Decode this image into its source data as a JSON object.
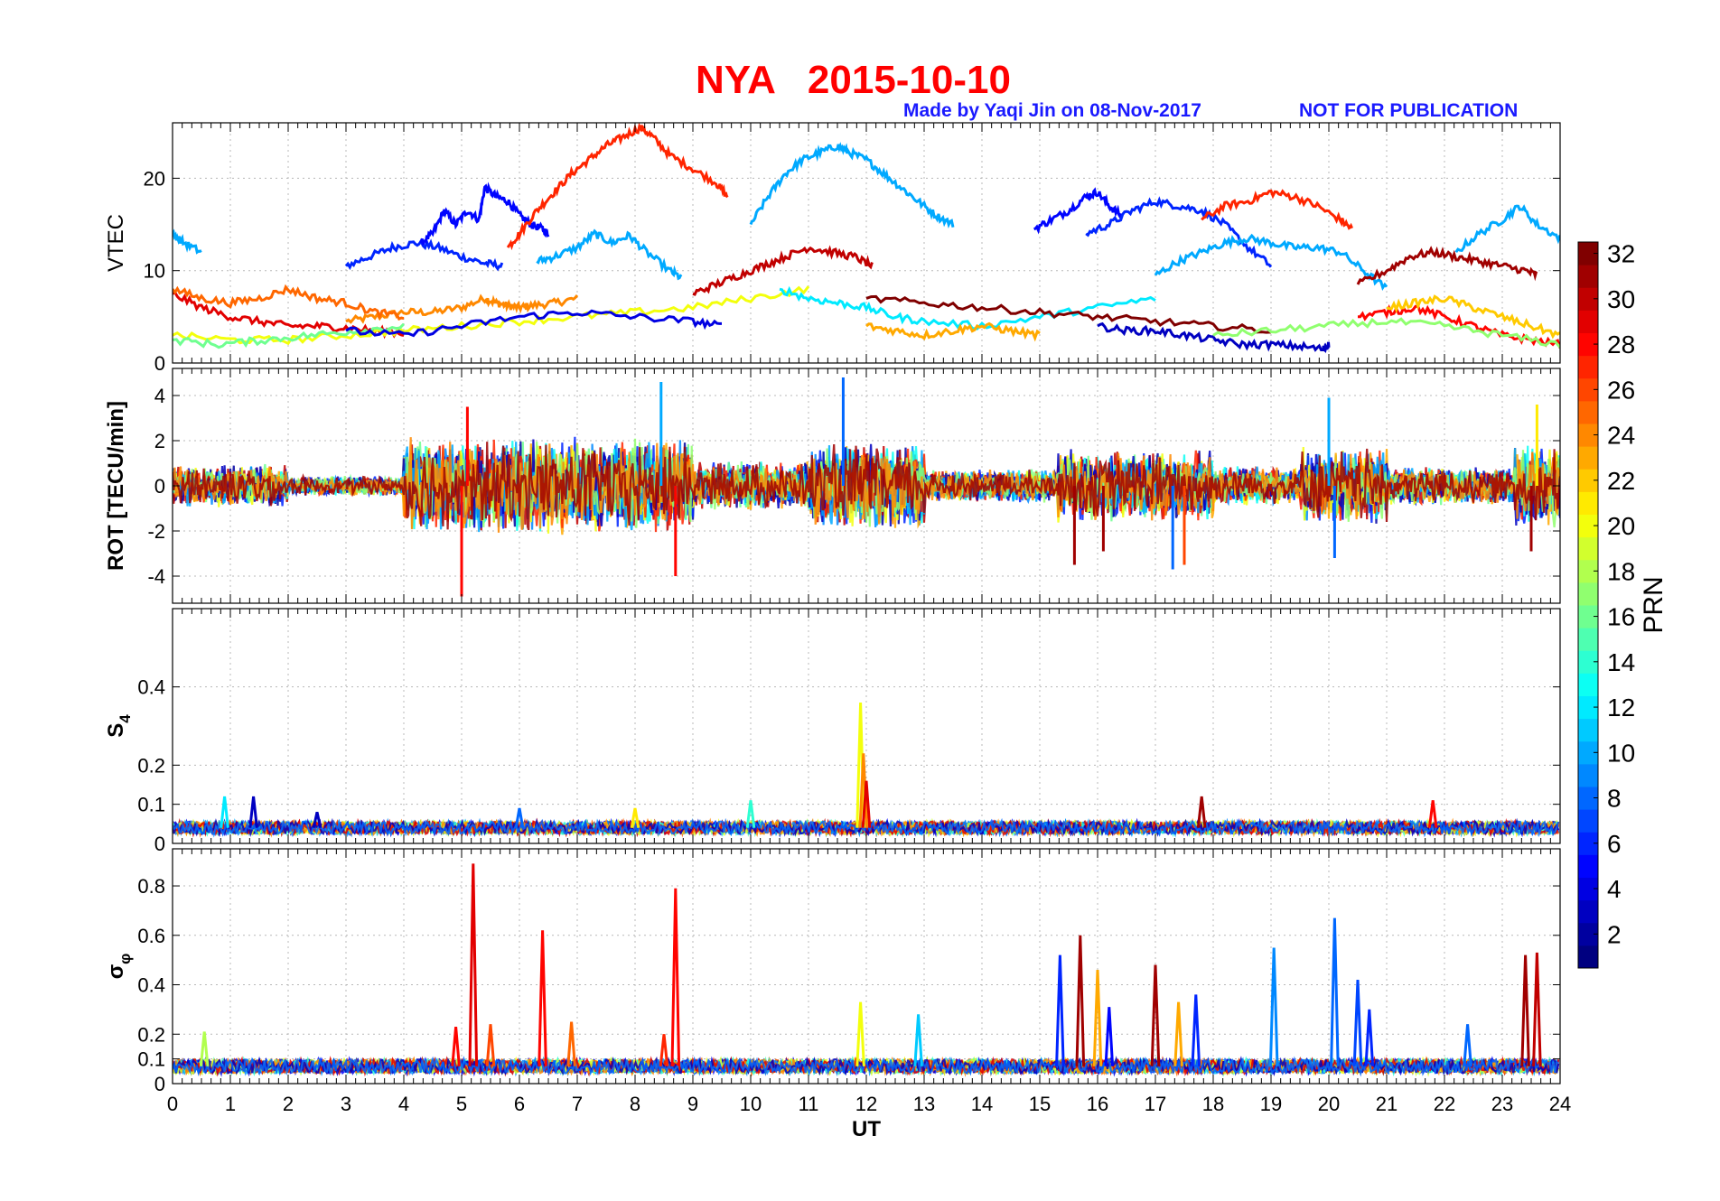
{
  "header": {
    "title": "NYA   2015-10-10",
    "credit": "Made by Yaqi Jin on 08-Nov-2017",
    "notice": "NOT FOR PUBLICATION"
  },
  "chart_data": [
    {
      "id": "vtec",
      "type": "line",
      "ylabel": "VTEC",
      "ylim": [
        0,
        26
      ],
      "yticks": [
        0,
        10,
        20
      ],
      "grid": true,
      "series": [
        {
          "prn": 24,
          "x": [
            3.0,
            3.5,
            4.0,
            4.5,
            5.0,
            5.4,
            5.6,
            5.8,
            6.0,
            6.2,
            6.6,
            7.0
          ],
          "y": [
            4.5,
            5,
            5.5,
            5.5,
            6,
            7,
            6.5,
            6.2,
            6,
            6.2,
            6.5,
            7
          ]
        },
        {
          "prn": 6,
          "x": [
            3.0,
            3.4,
            3.8,
            4.2,
            4.6,
            5.0,
            5.4,
            5.7
          ],
          "y": [
            10.5,
            11.5,
            12.5,
            13,
            12.5,
            11.5,
            10.8,
            10.5
          ]
        },
        {
          "prn": 5,
          "x": [
            4.3,
            4.5,
            4.7,
            4.9,
            5.1,
            5.3,
            5.4,
            5.6,
            5.8,
            6.0,
            6.2,
            6.4,
            6.5
          ],
          "y": [
            13,
            14,
            16.5,
            15,
            16.5,
            15.5,
            19,
            18,
            17.5,
            16,
            15,
            14.5,
            14
          ]
        },
        {
          "prn": 27,
          "x": [
            5.8,
            6.0,
            6.3,
            6.6,
            6.9,
            7.2,
            7.5,
            7.8,
            8.1,
            8.3,
            8.6,
            9.0,
            9.4,
            9.6
          ],
          "y": [
            12.5,
            14,
            16.5,
            18.5,
            20.5,
            22,
            23.5,
            24.5,
            25.5,
            24.5,
            22.5,
            21,
            19.5,
            18
          ]
        },
        {
          "prn": 10,
          "x": [
            6.3,
            6.6,
            7.0,
            7.3,
            7.6,
            7.9,
            8.2,
            8.6,
            8.8
          ],
          "y": [
            11,
            11.5,
            12.5,
            14,
            13,
            13.8,
            12,
            10,
            9.2
          ]
        },
        {
          "prn": 10,
          "x": [
            10.0,
            10.3,
            10.6,
            10.9,
            11.2,
            11.5,
            11.7,
            12.0,
            12.3,
            12.6,
            12.9,
            13.2,
            13.5
          ],
          "y": [
            15,
            18,
            20.5,
            22,
            22.8,
            23.5,
            22.8,
            22,
            20.5,
            19,
            17.5,
            16,
            15
          ]
        },
        {
          "prn": 5,
          "x": [
            14.9,
            15.2,
            15.5,
            15.8,
            16.0,
            16.2,
            16.4
          ],
          "y": [
            14.5,
            15.5,
            16.5,
            18,
            18.5,
            17,
            16
          ]
        },
        {
          "prn": 6,
          "x": [
            15.8,
            16.2,
            16.6,
            17.0,
            17.4,
            17.8,
            18.2,
            18.6,
            19.0
          ],
          "y": [
            14,
            15,
            16.5,
            17.5,
            17,
            16.5,
            15,
            12.5,
            10.5
          ]
        },
        {
          "prn": 27,
          "x": [
            17.8,
            18.2,
            18.6,
            19.0,
            19.4,
            19.8,
            20.2,
            20.4
          ],
          "y": [
            15.5,
            17,
            17.5,
            18.5,
            18,
            17,
            15.5,
            14.5
          ]
        },
        {
          "prn": 10,
          "x": [
            17.0,
            17.4,
            17.8,
            18.2,
            18.6,
            19.0,
            19.4,
            19.8,
            20.2,
            20.6,
            21.0
          ],
          "y": [
            9.5,
            11,
            12,
            13,
            13.5,
            13,
            12.5,
            12.5,
            12,
            10,
            8
          ]
        },
        {
          "prn": 10,
          "x": [
            22.2,
            22.6,
            23.0,
            23.3,
            23.6,
            24.0
          ],
          "y": [
            12,
            14,
            15.5,
            17,
            15,
            13.5
          ]
        },
        {
          "prn": 10,
          "x": [
            0.0,
            0.2,
            0.5
          ],
          "y": [
            14,
            13,
            12
          ]
        },
        {
          "prn": 30,
          "x": [
            9.0,
            9.4,
            9.8,
            10.2,
            10.6,
            11.0,
            11.4,
            11.8,
            12.1
          ],
          "y": [
            7.5,
            8.5,
            9.5,
            10.5,
            11.5,
            12.5,
            12,
            11.5,
            10.5
          ]
        },
        {
          "prn": 31,
          "x": [
            20.5,
            21.0,
            21.4,
            21.8,
            22.2,
            22.6,
            23.0,
            23.4,
            23.6
          ],
          "y": [
            8.5,
            10,
            11.5,
            12,
            11.5,
            11,
            10.5,
            10,
            9.5
          ]
        },
        {
          "prn": 29,
          "x": [
            0.0,
            0.5,
            1.0,
            1.5,
            2.0,
            2.5,
            3.0,
            3.5,
            4.0
          ],
          "y": [
            7.5,
            6,
            5,
            4.5,
            4,
            4,
            3.8,
            3.5,
            3.2
          ]
        },
        {
          "prn": 25,
          "x": [
            0.0,
            0.5,
            1.0,
            1.5,
            2.0,
            2.5,
            3.0,
            3.5,
            4.0
          ],
          "y": [
            8,
            7,
            6.5,
            7,
            8,
            7,
            6.5,
            5.5,
            5
          ]
        },
        {
          "prn": 20,
          "x": [
            0.0,
            1.0,
            2.0,
            3.0,
            4.0,
            5.0,
            6.0,
            7.0,
            8.0,
            9.0,
            10.0,
            11.0
          ],
          "y": [
            3,
            2.5,
            2.5,
            3,
            3.5,
            4,
            4.5,
            5,
            5.5,
            6,
            7,
            8
          ]
        },
        {
          "prn": 16,
          "x": [
            0.0,
            0.8,
            1.6,
            2.4,
            3.2,
            4.0
          ],
          "y": [
            2.5,
            2,
            2.5,
            3,
            3.5,
            4
          ]
        },
        {
          "prn": 4,
          "x": [
            3.0,
            4.0,
            5.0,
            6.0,
            7.0,
            8.0,
            9.0,
            9.5
          ],
          "y": [
            3.5,
            3,
            4,
            5,
            5.5,
            5,
            4.5,
            4
          ]
        },
        {
          "prn": 12,
          "x": [
            10.5,
            11.0,
            11.5,
            12.0,
            12.5,
            13.0,
            14.0,
            15.0,
            16.0,
            17.0
          ],
          "y": [
            8,
            7,
            6.5,
            6,
            5,
            4.5,
            4,
            5,
            6,
            7
          ]
        },
        {
          "prn": 23,
          "x": [
            12.0,
            12.5,
            13.0,
            13.5,
            14.0,
            14.5,
            15.0
          ],
          "y": [
            4,
            3.5,
            3,
            3.5,
            4,
            3.5,
            3
          ]
        },
        {
          "prn": 32,
          "x": [
            12.0,
            13.0,
            14.0,
            15.0,
            16.0,
            17.0,
            18.0,
            19.0
          ],
          "y": [
            7,
            6.5,
            6,
            5.5,
            5,
            4.5,
            4,
            3.5
          ]
        },
        {
          "prn": 3,
          "x": [
            16.0,
            16.5,
            17.0,
            17.5,
            18.0,
            18.5,
            19.0,
            19.5,
            19.9,
            20.0
          ],
          "y": [
            4,
            3.5,
            3.5,
            3,
            2.5,
            2,
            2,
            1.8,
            1.5,
            2
          ]
        },
        {
          "prn": 28,
          "x": [
            20.5,
            21.0,
            21.5,
            22.0,
            22.5,
            23.0,
            23.5,
            24.0
          ],
          "y": [
            5,
            5.5,
            6,
            5,
            4,
            3,
            2.5,
            2
          ]
        },
        {
          "prn": 22,
          "x": [
            21.0,
            21.5,
            22.0,
            22.5,
            23.0,
            23.5,
            24.0
          ],
          "y": [
            6,
            6.5,
            7,
            6,
            5,
            4,
            3
          ]
        },
        {
          "prn": 17,
          "x": [
            18.0,
            19.0,
            20.0,
            21.0,
            22.0,
            23.0,
            24.0
          ],
          "y": [
            3,
            3.5,
            4,
            4.5,
            4,
            3,
            2
          ]
        }
      ]
    },
    {
      "id": "rot",
      "type": "line",
      "ylabel": "ROT [TECU/min]",
      "ylim": [
        -5.2,
        5.2
      ],
      "yticks": [
        -4,
        -2,
        0,
        2,
        4
      ],
      "grid": true,
      "spikes": [
        {
          "x": 5.0,
          "y": -4.9,
          "prn": 28
        },
        {
          "x": 5.1,
          "y": 3.5,
          "prn": 28
        },
        {
          "x": 8.45,
          "y": 4.6,
          "prn": 10
        },
        {
          "x": 8.7,
          "y": -4.0,
          "prn": 28
        },
        {
          "x": 11.6,
          "y": 4.8,
          "prn": 8
        },
        {
          "x": 15.6,
          "y": -3.5,
          "prn": 31
        },
        {
          "x": 16.1,
          "y": -2.9,
          "prn": 31
        },
        {
          "x": 17.3,
          "y": -3.7,
          "prn": 8
        },
        {
          "x": 17.5,
          "y": -3.5,
          "prn": 26
        },
        {
          "x": 20.0,
          "y": 3.9,
          "prn": 10
        },
        {
          "x": 20.1,
          "y": -3.2,
          "prn": 8
        },
        {
          "x": 23.6,
          "y": 3.6,
          "prn": 21
        },
        {
          "x": 23.5,
          "y": -2.9,
          "prn": 31
        }
      ],
      "noise_windows": [
        {
          "from": 0.0,
          "to": 2.0,
          "amp": 0.9
        },
        {
          "from": 2.0,
          "to": 4.0,
          "amp": 0.4
        },
        {
          "from": 4.0,
          "to": 9.0,
          "amp": 2.0
        },
        {
          "from": 9.0,
          "to": 11.0,
          "amp": 1.0
        },
        {
          "from": 11.0,
          "to": 13.0,
          "amp": 1.8
        },
        {
          "from": 13.0,
          "to": 15.3,
          "amp": 0.7
        },
        {
          "from": 15.3,
          "to": 18.0,
          "amp": 1.5
        },
        {
          "from": 18.0,
          "to": 19.5,
          "amp": 0.8
        },
        {
          "from": 19.5,
          "to": 21.0,
          "amp": 1.6
        },
        {
          "from": 21.0,
          "to": 23.2,
          "amp": 0.8
        },
        {
          "from": 23.2,
          "to": 24.0,
          "amp": 1.7
        }
      ]
    },
    {
      "id": "s4",
      "type": "line",
      "ylabel": "S",
      "ylabel_sub": "4",
      "ylim": [
        0,
        0.6
      ],
      "yticks": [
        0,
        0.1,
        0.2,
        0.4
      ],
      "yticklabels": [
        "0",
        "0.1",
        "0.2",
        "0.4"
      ],
      "grid": true,
      "baseline": 0.04,
      "spikes": [
        {
          "x": 0.9,
          "y": 0.12,
          "prn": 12
        },
        {
          "x": 1.4,
          "y": 0.12,
          "prn": 3
        },
        {
          "x": 2.5,
          "y": 0.08,
          "prn": 3
        },
        {
          "x": 6.0,
          "y": 0.09,
          "prn": 8
        },
        {
          "x": 8.0,
          "y": 0.09,
          "prn": 21
        },
        {
          "x": 10.0,
          "y": 0.11,
          "prn": 14
        },
        {
          "x": 11.9,
          "y": 0.36,
          "prn": 20
        },
        {
          "x": 11.95,
          "y": 0.23,
          "prn": 24
        },
        {
          "x": 12.0,
          "y": 0.16,
          "prn": 29
        },
        {
          "x": 17.8,
          "y": 0.12,
          "prn": 31
        },
        {
          "x": 21.8,
          "y": 0.11,
          "prn": 28
        }
      ]
    },
    {
      "id": "sigma_phi",
      "type": "line",
      "ylabel": "σ",
      "ylabel_sub": "φ",
      "ylim": [
        0,
        0.95
      ],
      "yticks": [
        0,
        0.1,
        0.2,
        0.4,
        0.6,
        0.8
      ],
      "yticklabels": [
        "0",
        "0.1",
        "0.2",
        "0.4",
        "0.6",
        "0.8"
      ],
      "grid": true,
      "baseline": 0.07,
      "xlabel": "UT",
      "xlim": [
        0,
        24
      ],
      "xticks": [
        0,
        1,
        2,
        3,
        4,
        5,
        6,
        7,
        8,
        9,
        10,
        11,
        12,
        13,
        14,
        15,
        16,
        17,
        18,
        19,
        20,
        21,
        22,
        23,
        24
      ],
      "spikes": [
        {
          "x": 0.55,
          "y": 0.21,
          "prn": 18
        },
        {
          "x": 5.2,
          "y": 0.89,
          "prn": 29
        },
        {
          "x": 5.5,
          "y": 0.24,
          "prn": 26
        },
        {
          "x": 4.9,
          "y": 0.23,
          "prn": 28
        },
        {
          "x": 6.4,
          "y": 0.62,
          "prn": 28
        },
        {
          "x": 6.9,
          "y": 0.25,
          "prn": 25
        },
        {
          "x": 8.7,
          "y": 0.79,
          "prn": 28
        },
        {
          "x": 8.5,
          "y": 0.2,
          "prn": 27
        },
        {
          "x": 11.9,
          "y": 0.33,
          "prn": 20
        },
        {
          "x": 12.9,
          "y": 0.28,
          "prn": 11
        },
        {
          "x": 15.35,
          "y": 0.52,
          "prn": 6
        },
        {
          "x": 15.7,
          "y": 0.6,
          "prn": 31
        },
        {
          "x": 16.0,
          "y": 0.46,
          "prn": 23
        },
        {
          "x": 16.2,
          "y": 0.31,
          "prn": 5
        },
        {
          "x": 17.0,
          "y": 0.48,
          "prn": 31
        },
        {
          "x": 17.4,
          "y": 0.33,
          "prn": 23
        },
        {
          "x": 17.7,
          "y": 0.36,
          "prn": 6
        },
        {
          "x": 19.05,
          "y": 0.55,
          "prn": 9
        },
        {
          "x": 20.1,
          "y": 0.67,
          "prn": 8
        },
        {
          "x": 20.5,
          "y": 0.42,
          "prn": 7
        },
        {
          "x": 20.7,
          "y": 0.3,
          "prn": 6
        },
        {
          "x": 22.4,
          "y": 0.24,
          "prn": 8
        },
        {
          "x": 23.4,
          "y": 0.52,
          "prn": 31
        },
        {
          "x": 23.6,
          "y": 0.53,
          "prn": 30
        }
      ]
    }
  ],
  "colorbar": {
    "label": "PRN",
    "range": [
      1,
      32
    ],
    "ticks": [
      2,
      4,
      6,
      8,
      10,
      12,
      14,
      16,
      18,
      20,
      22,
      24,
      26,
      28,
      30,
      32
    ],
    "colormap": "jet"
  }
}
